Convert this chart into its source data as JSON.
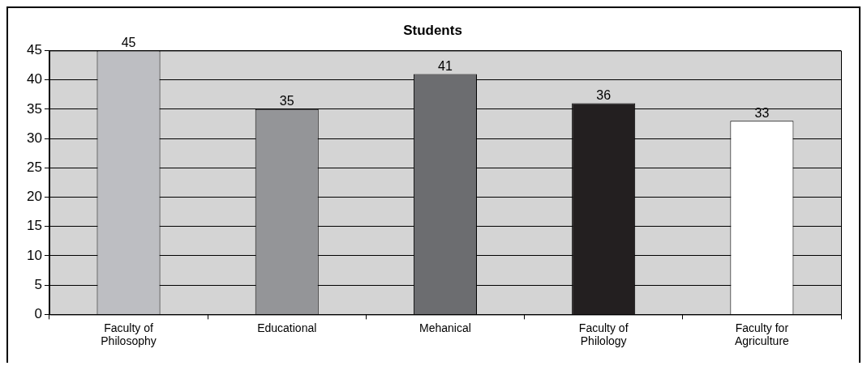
{
  "chart_data": {
    "type": "bar",
    "title": "Students",
    "categories": [
      "Faculty of Philosophy",
      "Educational",
      "Mehanical",
      "Faculty of Philology",
      "Faculty for Agriculture"
    ],
    "values": [
      45,
      35,
      41,
      36,
      33
    ],
    "colors": [
      "#bdbec2",
      "#949598",
      "#6c6d70",
      "#231f20",
      "#ffffff"
    ],
    "ylim": [
      0,
      45
    ],
    "yticks": [
      0,
      5,
      10,
      15,
      20,
      25,
      30,
      35,
      40,
      45
    ],
    "grid": "y",
    "data_labels": true,
    "legend": false
  }
}
